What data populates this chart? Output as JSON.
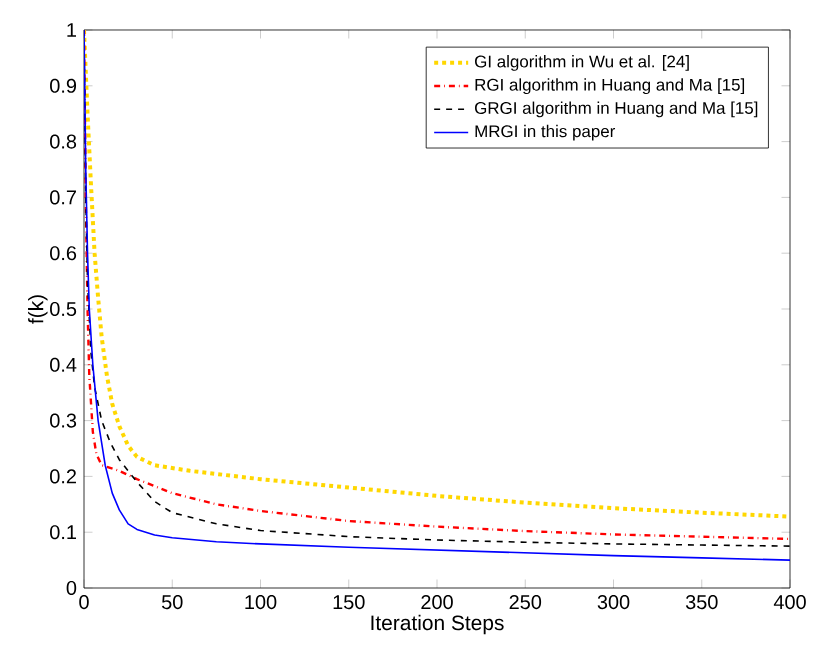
{
  "chart_data": {
    "type": "line",
    "xlabel": "Iteration Steps",
    "ylabel": "f(k)",
    "xlim": [
      0,
      400
    ],
    "ylim": [
      0,
      1
    ],
    "xticks": [
      0,
      50,
      100,
      150,
      200,
      250,
      300,
      350,
      400
    ],
    "yticks": [
      0,
      0.1,
      0.2,
      0.3,
      0.4,
      0.5,
      0.6,
      0.7,
      0.8,
      0.9,
      1
    ],
    "grid": false,
    "legend": "top right",
    "series": [
      {
        "name": "GI algorithm in Wu et al. [24]",
        "color": "#ffd700",
        "line_style": "dotted",
        "x": [
          0,
          2,
          4,
          6,
          8,
          10,
          13,
          16,
          20,
          25,
          30,
          40,
          60,
          100,
          150,
          200,
          250,
          300,
          350,
          400
        ],
        "values": [
          1,
          0.85,
          0.72,
          0.6,
          0.52,
          0.45,
          0.38,
          0.33,
          0.29,
          0.255,
          0.235,
          0.22,
          0.21,
          0.195,
          0.18,
          0.165,
          0.153,
          0.143,
          0.135,
          0.128
        ]
      },
      {
        "name": "RGI algorithm in Huang and Ma [15]",
        "color": "#ff0000",
        "line_style": "dashdot",
        "x": [
          0,
          1,
          2,
          3,
          5,
          7,
          10,
          20,
          30,
          50,
          75,
          100,
          150,
          200,
          250,
          300,
          350,
          400
        ],
        "values": [
          1,
          0.7,
          0.5,
          0.38,
          0.28,
          0.24,
          0.22,
          0.21,
          0.195,
          0.17,
          0.15,
          0.138,
          0.12,
          0.11,
          0.102,
          0.096,
          0.092,
          0.088
        ]
      },
      {
        "name": "GRGI algorithm in Huang and Ma [15]",
        "color": "#000000",
        "line_style": "dashed",
        "x": [
          0,
          1,
          2,
          4,
          6,
          10,
          15,
          20,
          30,
          40,
          50,
          75,
          100,
          150,
          200,
          250,
          300,
          350,
          400
        ],
        "values": [
          1,
          0.7,
          0.55,
          0.42,
          0.36,
          0.3,
          0.26,
          0.23,
          0.19,
          0.155,
          0.135,
          0.115,
          0.103,
          0.092,
          0.086,
          0.082,
          0.079,
          0.077,
          0.075
        ]
      },
      {
        "name": "MRGI in this paper",
        "color": "#0000ff",
        "line_style": "solid",
        "x": [
          0,
          1,
          2,
          3,
          5,
          8,
          12,
          16,
          20,
          25,
          30,
          40,
          50,
          75,
          100,
          150,
          200,
          250,
          300,
          350,
          400
        ],
        "values": [
          1,
          0.75,
          0.6,
          0.5,
          0.4,
          0.3,
          0.22,
          0.17,
          0.14,
          0.115,
          0.105,
          0.095,
          0.09,
          0.083,
          0.079,
          0.073,
          0.068,
          0.063,
          0.058,
          0.054,
          0.05
        ]
      }
    ]
  }
}
